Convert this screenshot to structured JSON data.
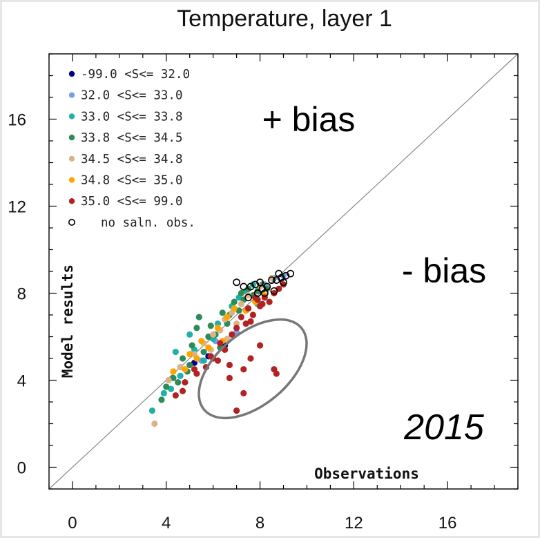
{
  "chart_data": {
    "type": "scatter",
    "title": "Temperature, layer 1",
    "xlabel": "Observations",
    "ylabel": "Model results",
    "xlim": [
      -1,
      19
    ],
    "ylim": [
      -1,
      19
    ],
    "xticks": [
      0,
      4,
      8,
      12,
      16
    ],
    "yticks": [
      0,
      4,
      8,
      12,
      16
    ],
    "tick_labels_x": [
      "0",
      "4",
      "8",
      "12",
      "16"
    ],
    "tick_labels_y": [
      "0",
      "4",
      "8",
      "12",
      "16"
    ],
    "reference_line": "y = x",
    "grid": false,
    "legend_position": "top-left",
    "annotations": {
      "plus_bias": "+ bias",
      "minus_bias": "- bias",
      "year": "2015"
    },
    "highlight_ellipse": {
      "center": [
        8.5,
        5.2
      ],
      "note": "ellipse around points with negative bias"
    },
    "series": [
      {
        "name": "-99.0 <S<= 32.0",
        "color": "#00008b",
        "marker": "filled",
        "points": [
          [
            5.2,
            4.8
          ],
          [
            5.8,
            5.1
          ],
          [
            6.5,
            5.6
          ]
        ]
      },
      {
        "name": "32.0 <S<= 33.0",
        "color": "#7b9fe8",
        "marker": "filled",
        "points": [
          [
            5.5,
            4.9
          ],
          [
            7.0,
            6.2
          ],
          [
            8.6,
            8.7
          ],
          [
            9.0,
            8.8
          ],
          [
            6.1,
            5.8
          ],
          [
            8.2,
            8.4
          ]
        ]
      },
      {
        "name": "33.0 <S<= 33.8",
        "color": "#1fb0a8",
        "marker": "filled",
        "points": [
          [
            3.4,
            2.6
          ],
          [
            3.9,
            3.4
          ],
          [
            4.2,
            3.6
          ],
          [
            4.4,
            5.3
          ],
          [
            4.6,
            4.2
          ],
          [
            5.2,
            5.4
          ],
          [
            5.6,
            4.9
          ],
          [
            6.0,
            5.9
          ],
          [
            6.2,
            6.6
          ],
          [
            6.8,
            7.4
          ],
          [
            7.1,
            7.8
          ],
          [
            7.4,
            8.1
          ],
          [
            7.7,
            8.4
          ],
          [
            7.9,
            7.5
          ],
          [
            5.0,
            6.1
          ]
        ]
      },
      {
        "name": "33.8 <S<= 34.5",
        "color": "#2e8b57",
        "marker": "filled",
        "points": [
          [
            4.0,
            3.7
          ],
          [
            4.3,
            4.1
          ],
          [
            4.7,
            5.0
          ],
          [
            4.9,
            4.4
          ],
          [
            5.1,
            5.6
          ],
          [
            5.3,
            6.4
          ],
          [
            5.4,
            6.9
          ],
          [
            5.6,
            5.3
          ],
          [
            5.8,
            6.0
          ],
          [
            5.9,
            6.5
          ],
          [
            6.1,
            6.1
          ],
          [
            6.3,
            5.5
          ],
          [
            6.4,
            7.1
          ],
          [
            6.6,
            6.6
          ],
          [
            6.7,
            7.0
          ],
          [
            6.9,
            7.6
          ],
          [
            7.1,
            7.2
          ],
          [
            7.2,
            8.0
          ],
          [
            7.3,
            7.7
          ],
          [
            7.5,
            8.2
          ],
          [
            7.7,
            7.9
          ],
          [
            7.9,
            8.1
          ],
          [
            8.1,
            8.4
          ],
          [
            8.3,
            8.2
          ],
          [
            5.0,
            4.7
          ],
          [
            4.5,
            3.9
          ],
          [
            3.8,
            3.1
          ]
        ]
      },
      {
        "name": "34.5 <S<= 34.8",
        "color": "#d9b48a",
        "marker": "filled",
        "points": [
          [
            3.5,
            2.0
          ],
          [
            4.1,
            4.0
          ],
          [
            4.6,
            4.6
          ],
          [
            5.2,
            5.2
          ],
          [
            5.6,
            5.7
          ],
          [
            6.0,
            6.1
          ],
          [
            6.3,
            6.3
          ],
          [
            6.5,
            6.8
          ],
          [
            6.8,
            7.1
          ],
          [
            7.0,
            6.6
          ],
          [
            7.2,
            7.5
          ],
          [
            7.5,
            7.9
          ],
          [
            8.0,
            8.3
          ],
          [
            8.5,
            8.7
          ],
          [
            6.6,
            5.9
          ],
          [
            5.9,
            5.4
          ]
        ]
      },
      {
        "name": "34.8 <S<= 35.0",
        "color": "#ffa500",
        "marker": "filled",
        "points": [
          [
            4.3,
            4.4
          ],
          [
            4.8,
            4.5
          ],
          [
            5.3,
            5.0
          ],
          [
            5.5,
            5.8
          ],
          [
            5.8,
            5.5
          ],
          [
            6.2,
            6.4
          ],
          [
            6.6,
            6.9
          ],
          [
            6.9,
            7.3
          ],
          [
            7.4,
            7.2
          ],
          [
            7.8,
            7.6
          ],
          [
            8.2,
            7.9
          ],
          [
            6.4,
            5.8
          ],
          [
            5.0,
            5.2
          ]
        ]
      },
      {
        "name": "35.0 <S<= 99.0",
        "color": "#b22222",
        "marker": "filled",
        "points": [
          [
            4.4,
            3.3
          ],
          [
            4.8,
            3.9
          ],
          [
            4.7,
            3.5
          ],
          [
            5.3,
            4.3
          ],
          [
            5.7,
            4.6
          ],
          [
            6.0,
            5.0
          ],
          [
            6.3,
            5.7
          ],
          [
            6.5,
            5.4
          ],
          [
            6.8,
            6.1
          ],
          [
            7.0,
            6.4
          ],
          [
            7.2,
            6.9
          ],
          [
            7.4,
            6.6
          ],
          [
            7.5,
            7.3
          ],
          [
            7.7,
            7.0
          ],
          [
            7.9,
            7.7
          ],
          [
            8.0,
            7.4
          ],
          [
            8.2,
            7.8
          ],
          [
            8.4,
            7.6
          ],
          [
            8.6,
            8.0
          ],
          [
            8.8,
            8.2
          ],
          [
            9.0,
            8.4
          ],
          [
            7.6,
            6.7
          ],
          [
            7.3,
            4.5
          ],
          [
            7.3,
            3.4
          ],
          [
            7.0,
            2.6
          ],
          [
            6.7,
            4.7
          ],
          [
            6.7,
            4.1
          ],
          [
            7.6,
            5.0
          ],
          [
            8.0,
            5.6
          ],
          [
            8.6,
            4.5
          ],
          [
            8.7,
            4.3
          ],
          [
            7.8,
            7.8
          ],
          [
            8.1,
            7.5
          ],
          [
            5.2,
            4.5
          ],
          [
            5.9,
            5.1
          ],
          [
            6.2,
            4.9
          ]
        ]
      },
      {
        "name": "no saln. obs.",
        "color": "#000000",
        "marker": "open",
        "points": [
          [
            7.0,
            8.5
          ],
          [
            7.3,
            8.3
          ],
          [
            7.6,
            8.3
          ],
          [
            7.8,
            8.4
          ],
          [
            8.0,
            8.5
          ],
          [
            8.3,
            8.3
          ],
          [
            8.5,
            8.6
          ],
          [
            8.7,
            8.6
          ],
          [
            8.9,
            8.7
          ],
          [
            9.1,
            8.8
          ],
          [
            9.3,
            8.9
          ],
          [
            8.1,
            8.2
          ],
          [
            7.9,
            8.0
          ],
          [
            8.6,
            8.1
          ],
          [
            9.0,
            8.5
          ],
          [
            7.5,
            7.8
          ],
          [
            8.2,
            8.0
          ],
          [
            8.8,
            8.9
          ]
        ]
      }
    ]
  }
}
